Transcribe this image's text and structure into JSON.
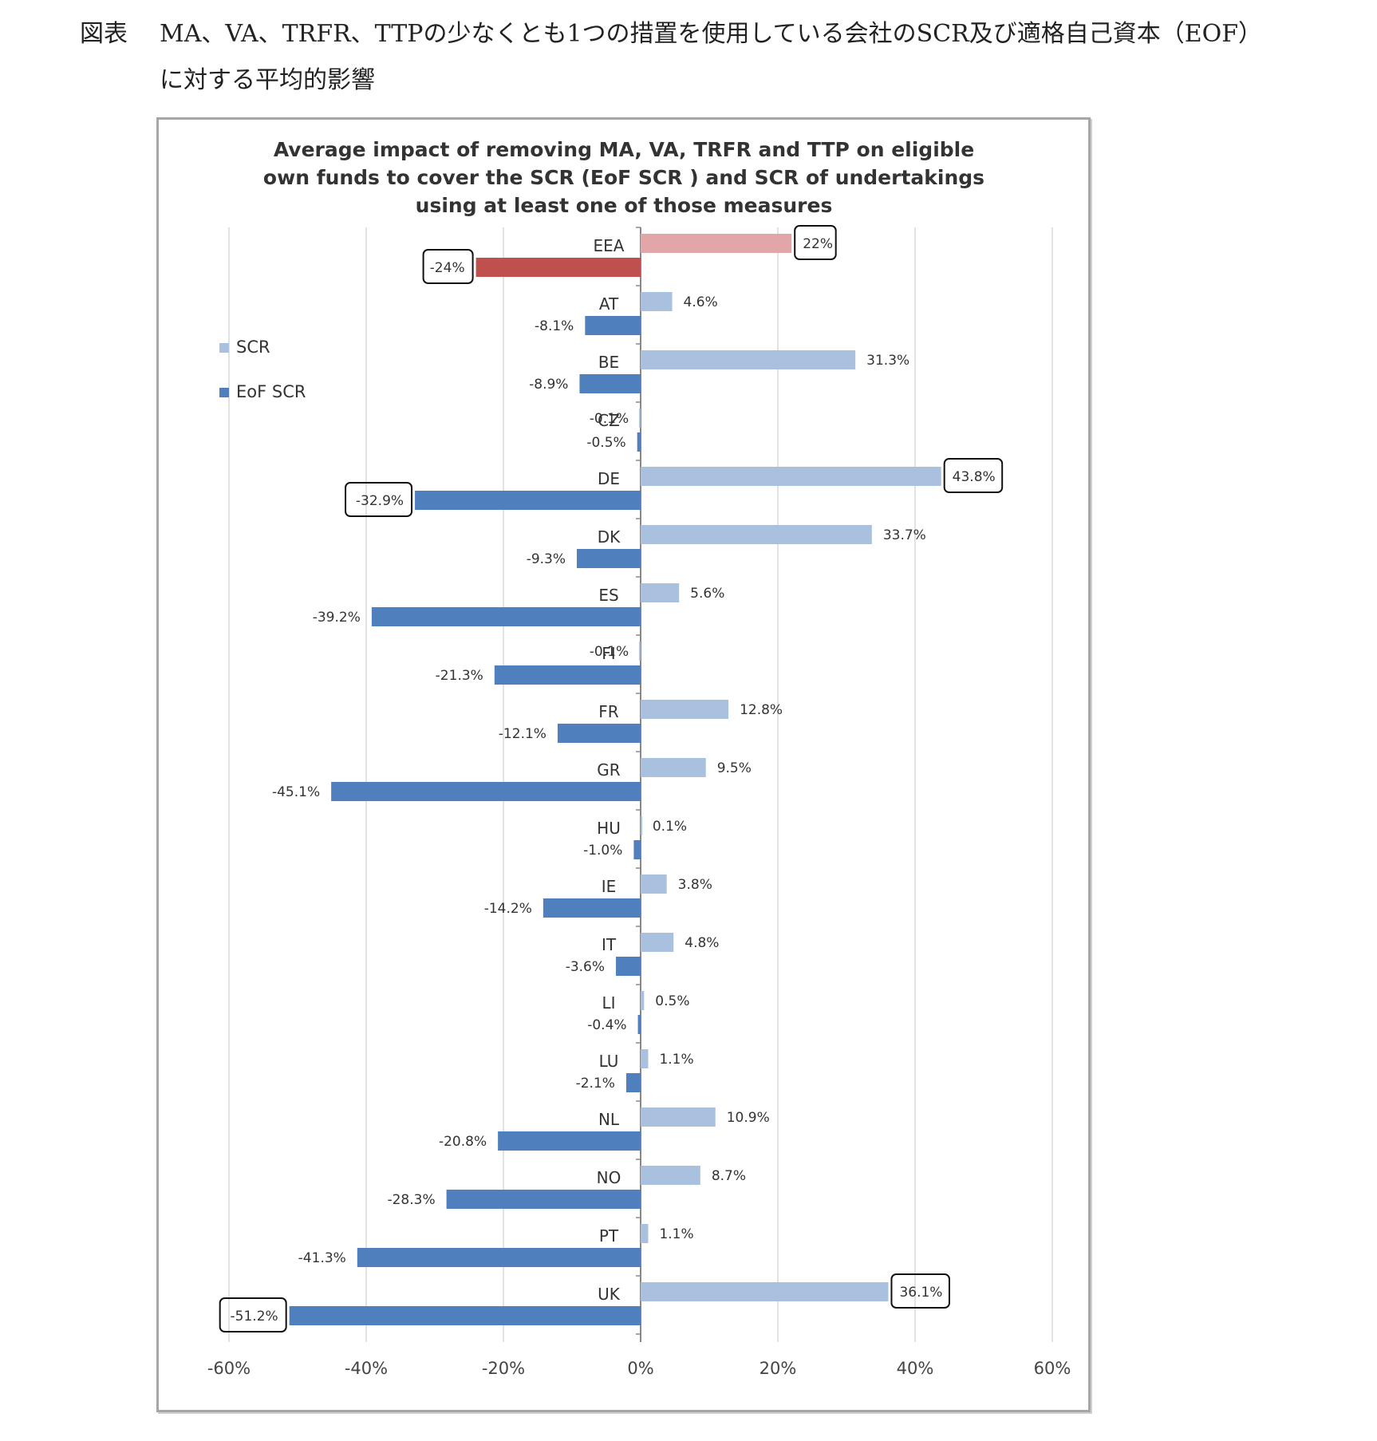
{
  "heading": {
    "prefix": "図表",
    "line1": "MA、VA、TRFR、TTPの少なくとも1つの措置を使用している会社のSCR及び適格自己資本（EOF）",
    "line2": "に対する平均的影響"
  },
  "colors": {
    "scr": "#a9c1df",
    "eof_scr": "#4f7fbd",
    "eea_scr": "#e2a5a8",
    "eea_eof_scr": "#c0504d",
    "grid": "#d9d9d9",
    "axis": "#888888"
  },
  "chart_data": {
    "type": "bar",
    "orientation": "horizontal",
    "title": [
      "Average impact of removing MA, VA, TRFR and TTP on eligible",
      "own funds to cover the SCR (EoF SCR ) and SCR of undertakings",
      "using at least one of those measures"
    ],
    "xlim": [
      -60,
      60
    ],
    "x_ticks": [
      -60,
      -40,
      -20,
      0,
      20,
      40,
      60
    ],
    "x_tick_labels": [
      "-60%",
      "-40%",
      "-20%",
      "0%",
      "20%",
      "40%",
      "60%"
    ],
    "grid": true,
    "legend_position": "left",
    "categories": [
      "EEA",
      "AT",
      "BE",
      "CZ",
      "DE",
      "DK",
      "ES",
      "FI",
      "FR",
      "GR",
      "HU",
      "IE",
      "IT",
      "LI",
      "LU",
      "NL",
      "NO",
      "PT",
      "UK"
    ],
    "series": [
      {
        "name": "SCR",
        "values": [
          22,
          4.6,
          31.3,
          -0.1,
          43.8,
          33.7,
          5.6,
          -0.1,
          12.8,
          9.5,
          0.1,
          3.8,
          4.8,
          0.5,
          1.1,
          10.9,
          8.7,
          1.1,
          36.1
        ],
        "labels": [
          "22%",
          "4.6%",
          "31.3%",
          "-0.1%",
          "43.8%",
          "33.7%",
          "5.6%",
          "-0.1%",
          "12.8%",
          "9.5%",
          "0.1%",
          "3.8%",
          "4.8%",
          "0.5%",
          "1.1%",
          "10.9%",
          "8.7%",
          "1.1%",
          "36.1%"
        ]
      },
      {
        "name": "EoF SCR",
        "values": [
          -24,
          -8.1,
          -8.9,
          -0.5,
          -32.9,
          -9.3,
          -39.2,
          -21.3,
          -12.1,
          -45.1,
          -1.0,
          -14.2,
          -3.6,
          -0.4,
          -2.1,
          -20.8,
          -28.3,
          -41.3,
          -51.2
        ],
        "labels": [
          "-24%",
          "-8.1%",
          "-8.9%",
          "-0.5%",
          "-32.9%",
          "-9.3%",
          "-39.2%",
          "-21.3%",
          "-12.1%",
          "-45.1%",
          "-1.0%",
          "-14.2%",
          "-3.6%",
          "-0.4%",
          "-2.1%",
          "-20.8%",
          "-28.3%",
          "-41.3%",
          "-51.2%"
        ]
      }
    ],
    "boxed_labels": [
      {
        "category": "EEA",
        "series": "SCR"
      },
      {
        "category": "EEA",
        "series": "EoF SCR"
      },
      {
        "category": "DE",
        "series": "SCR"
      },
      {
        "category": "DE",
        "series": "EoF SCR"
      },
      {
        "category": "UK",
        "series": "SCR"
      },
      {
        "category": "UK",
        "series": "EoF SCR"
      }
    ]
  }
}
